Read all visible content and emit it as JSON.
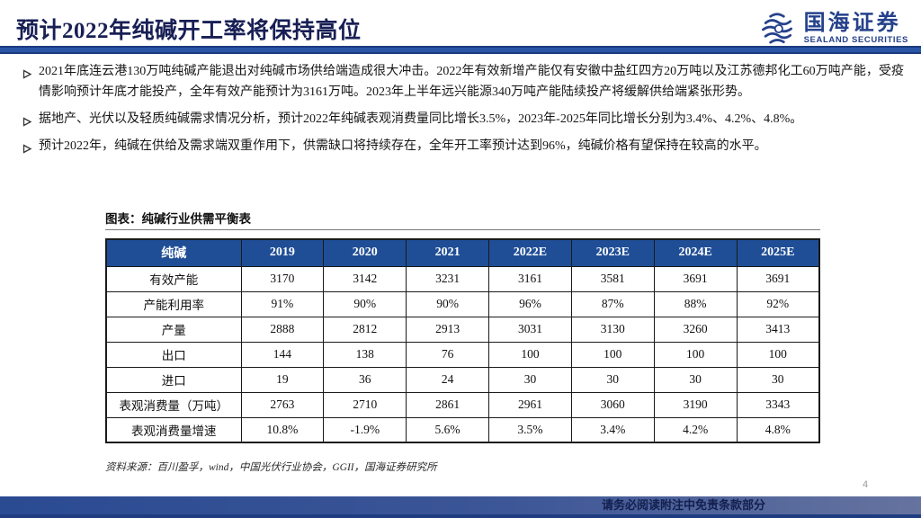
{
  "header": {
    "title": "预计2022年纯碱开工率将保持高位",
    "logo": {
      "cn": "国海证券",
      "en": "SEALAND SECURITIES"
    }
  },
  "bullets": [
    "2021年底连云港130万吨纯碱产能退出对纯碱市场供给端造成很大冲击。2022年有效新增产能仅有安徽中盐红四方20万吨以及江苏德邦化工60万吨产能，受疫情影响预计年底才能投产，全年有效产能预计为3161万吨。2023年上半年远兴能源340万吨产能陆续投产将缓解供给端紧张形势。",
    "据地产、光伏以及轻质纯碱需求情况分析，预计2022年纯碱表观消费量同比增长3.5%，2023年-2025年同比增长分别为3.4%、4.2%、4.8%。",
    "预计2022年，纯碱在供给及需求端双重作用下，供需缺口将持续存在，全年开工率预计达到96%，纯碱价格有望保持在较高的水平。"
  ],
  "figure": {
    "caption": "图表：纯碱行业供需平衡表",
    "source": "资料来源：百川盈孚，wind，中国光伏行业协会，GGII，国海证券研究所"
  },
  "table": {
    "headers": [
      "纯碱",
      "2019",
      "2020",
      "2021",
      "2022E",
      "2023E",
      "2024E",
      "2025E"
    ],
    "rows": [
      {
        "label": "有效产能",
        "values": [
          "3170",
          "3142",
          "3231",
          "3161",
          "3581",
          "3691",
          "3691"
        ]
      },
      {
        "label": "产能利用率",
        "values": [
          "91%",
          "90%",
          "90%",
          "96%",
          "87%",
          "88%",
          "92%"
        ]
      },
      {
        "label": "产量",
        "values": [
          "2888",
          "2812",
          "2913",
          "3031",
          "3130",
          "3260",
          "3413"
        ]
      },
      {
        "label": "出口",
        "values": [
          "144",
          "138",
          "76",
          "100",
          "100",
          "100",
          "100"
        ]
      },
      {
        "label": "进口",
        "values": [
          "19",
          "36",
          "24",
          "30",
          "30",
          "30",
          "30"
        ]
      },
      {
        "label": "表观消费量（万吨）",
        "values": [
          "2763",
          "2710",
          "2861",
          "2961",
          "3060",
          "3190",
          "3343"
        ]
      },
      {
        "label": "表观消费量增速",
        "values": [
          "10.8%",
          "-1.9%",
          "5.6%",
          "3.5%",
          "3.4%",
          "4.2%",
          "4.8%"
        ]
      }
    ]
  },
  "footer": {
    "disclaimer": "请务必阅读附注中免责条款部分",
    "page_number": "4"
  },
  "colors": {
    "title_text": "#181f55",
    "accent_rule": "#2a55a5",
    "table_header_bg": "#1f4e96",
    "logo_blue": "#25418c",
    "footer_gradient_left": "#2a4a92",
    "footer_gradient_right": "#66739f",
    "footer_bottom_line": "#1e3c7f"
  }
}
